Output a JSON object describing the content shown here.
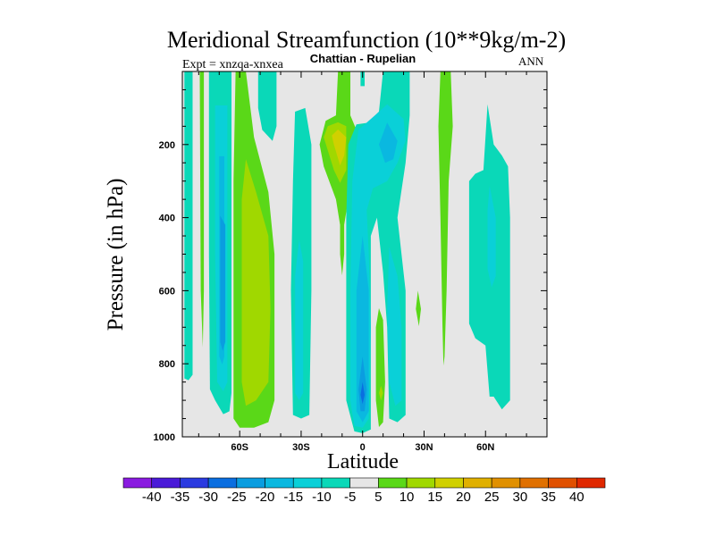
{
  "chart_data": {
    "type": "contour",
    "title": "Meridional Streamfunction (10**9kg/m-2)",
    "subtitle": "Chattian - Rupelian",
    "left_annotation": "Expt = xnzqa-xnxea",
    "right_annotation": "ANN",
    "xlabel": "Latitude",
    "ylabel": "Pressure (in hPa)",
    "xlim": [
      -88,
      90
    ],
    "ylim": [
      1000,
      0
    ],
    "x_ticks": [
      {
        "value": -60,
        "label": "60S"
      },
      {
        "value": -30,
        "label": "30S"
      },
      {
        "value": 0,
        "label": "0"
      },
      {
        "value": 30,
        "label": "30N"
      },
      {
        "value": 60,
        "label": "60N"
      }
    ],
    "y_ticks": [
      {
        "value": 200,
        "label": "200"
      },
      {
        "value": 400,
        "label": "400"
      },
      {
        "value": 600,
        "label": "600"
      },
      {
        "value": 800,
        "label": "800"
      },
      {
        "value": 1000,
        "label": "1000"
      }
    ],
    "background_color": "#e6e6e6",
    "colorbar": {
      "labels": [
        "-40",
        "-35",
        "-30",
        "-25",
        "-20",
        "-15",
        "-10",
        "-5",
        "5",
        "10",
        "15",
        "20",
        "25",
        "30",
        "35",
        "40"
      ],
      "colors": [
        "#8a1be0",
        "#4a1ad8",
        "#2a3ae0",
        "#0a6ee0",
        "#0a9de0",
        "#0ab8e0",
        "#0ad0d8",
        "#0ad8b8",
        "#e6e6e6",
        "#5ad818",
        "#a0d800",
        "#d0d000",
        "#e0b000",
        "#e09000",
        "#e07000",
        "#e05000",
        "#e02800"
      ]
    },
    "regions": [
      {
        "level": -7.5,
        "color": "#0ad8b8",
        "points": [
          [
            -87,
            0
          ],
          [
            -83,
            0
          ],
          [
            -83,
            830
          ],
          [
            -85,
            845
          ],
          [
            -87,
            840
          ]
        ]
      },
      {
        "level": 7.5,
        "color": "#5ad818",
        "points": [
          [
            -79.5,
            0
          ],
          [
            -77.5,
            0
          ],
          [
            -77.5,
            600
          ],
          [
            -78,
            755
          ],
          [
            -79,
            600
          ]
        ]
      },
      {
        "level": -7.5,
        "color": "#0ad8b8",
        "points": [
          [
            -75,
            0
          ],
          [
            -64,
            0
          ],
          [
            -64,
            880
          ],
          [
            -65,
            930
          ],
          [
            -68,
            938
          ],
          [
            -72,
            900
          ],
          [
            -74.5,
            870
          ],
          [
            -75,
            500
          ]
        ]
      },
      {
        "level": -12.5,
        "color": "#0ad0d8",
        "points": [
          [
            -72,
            93
          ],
          [
            -66,
            93
          ],
          [
            -66,
            850
          ],
          [
            -68,
            875
          ],
          [
            -71,
            850
          ],
          [
            -72,
            500
          ]
        ]
      },
      {
        "level": -17.5,
        "color": "#0ab8e0",
        "points": [
          [
            -70,
            232
          ],
          [
            -67.5,
            232
          ],
          [
            -67.5,
            780
          ],
          [
            -68.5,
            802
          ],
          [
            -70,
            780
          ]
        ]
      },
      {
        "level": -22.5,
        "color": "#0a9de0",
        "points": [
          [
            -69.5,
            395
          ],
          [
            -67,
            420
          ],
          [
            -67,
            740
          ],
          [
            -68.3,
            765
          ],
          [
            -69.5,
            740
          ]
        ]
      },
      {
        "level": 7.5,
        "color": "#5ad818",
        "points": [
          [
            -62,
            0
          ],
          [
            -57,
            0
          ],
          [
            -53,
            180
          ],
          [
            -46,
            330
          ],
          [
            -43,
            500
          ],
          [
            -43,
            900
          ],
          [
            -46,
            960
          ],
          [
            -53,
            975
          ],
          [
            -60,
            975
          ],
          [
            -63,
            950
          ],
          [
            -63,
            300
          ]
        ]
      },
      {
        "level": 12.5,
        "color": "#a0d800",
        "points": [
          [
            -57,
            240
          ],
          [
            -52,
            330
          ],
          [
            -46,
            450
          ],
          [
            -45,
            650
          ],
          [
            -46,
            850
          ],
          [
            -52,
            900
          ],
          [
            -57,
            915
          ],
          [
            -59,
            850
          ],
          [
            -59,
            350
          ]
        ]
      },
      {
        "level": -7.5,
        "color": "#0ad8b8",
        "points": [
          [
            -51,
            0
          ],
          [
            -42,
            0
          ],
          [
            -42,
            150
          ],
          [
            -44,
            190
          ],
          [
            -49,
            160
          ],
          [
            -51,
            100
          ]
        ]
      },
      {
        "level": -7.5,
        "color": "#0ad8b8",
        "points": [
          [
            -33,
            110
          ],
          [
            -28,
            100
          ],
          [
            -25,
            200
          ],
          [
            -25,
            600
          ],
          [
            -26,
            940
          ],
          [
            -30,
            950
          ],
          [
            -34,
            940
          ],
          [
            -35,
            600
          ],
          [
            -34,
            300
          ]
        ]
      },
      {
        "level": -12.5,
        "color": "#0ad0d8",
        "points": [
          [
            -31,
            460
          ],
          [
            -29,
            520
          ],
          [
            -29,
            880
          ],
          [
            -31,
            900
          ],
          [
            -33,
            880
          ],
          [
            -33,
            560
          ]
        ]
      },
      {
        "level": 7.5,
        "color": "#5ad818",
        "points": [
          [
            -12,
            0
          ],
          [
            -6,
            0
          ],
          [
            -6,
            120
          ],
          [
            -3,
            160
          ],
          [
            -3,
            300
          ],
          [
            -7,
            350
          ],
          [
            -9,
            420
          ],
          [
            -9,
            500
          ],
          [
            -10,
            558
          ],
          [
            -11,
            500
          ],
          [
            -11,
            420
          ],
          [
            -13,
            350
          ],
          [
            -19,
            260
          ],
          [
            -21,
            200
          ],
          [
            -18,
            135
          ],
          [
            -13,
            120
          ]
        ]
      },
      {
        "level": 12.5,
        "color": "#a0d800",
        "points": [
          [
            -12,
            139
          ],
          [
            -8,
            150
          ],
          [
            -8,
            270
          ],
          [
            -11,
            305
          ],
          [
            -14,
            270
          ],
          [
            -19,
            180
          ],
          [
            -17,
            150
          ]
        ]
      },
      {
        "level": 17.5,
        "color": "#d0d000",
        "points": [
          [
            -12,
            159
          ],
          [
            -8,
            180
          ],
          [
            -9,
            230
          ],
          [
            -11,
            257
          ],
          [
            -14,
            200
          ],
          [
            -15,
            175
          ]
        ]
      },
      {
        "level": -7.5,
        "color": "#0ad8b8",
        "points": [
          [
            -1,
            0
          ],
          [
            1,
            0
          ],
          [
            1,
            40
          ],
          [
            -1,
            40
          ]
        ]
      },
      {
        "level": -7.5,
        "color": "#0ad8b8",
        "points": [
          [
            10,
            0
          ],
          [
            23,
            0
          ],
          [
            23,
            120
          ],
          [
            21,
            250
          ],
          [
            17,
            400
          ],
          [
            21,
            600
          ],
          [
            21,
            940
          ],
          [
            17,
            960
          ],
          [
            13,
            950
          ],
          [
            12,
            700
          ],
          [
            10,
            550
          ],
          [
            7,
            400
          ],
          [
            4,
            450
          ],
          [
            4,
            980
          ],
          [
            0,
            990
          ],
          [
            -4,
            985
          ],
          [
            -8,
            900
          ],
          [
            -8,
            400
          ],
          [
            -7,
            200
          ],
          [
            -3,
            145
          ],
          [
            3,
            140
          ],
          [
            8,
            110
          ]
        ]
      },
      {
        "level": -12.5,
        "color": "#0ad0d8",
        "points": [
          [
            6,
            120
          ],
          [
            12,
            90
          ],
          [
            20,
            130
          ],
          [
            21,
            190
          ],
          [
            17,
            250
          ],
          [
            12,
            300
          ],
          [
            5,
            320
          ],
          [
            2,
            380
          ],
          [
            3,
            500
          ],
          [
            4,
            700
          ],
          [
            3,
            950
          ],
          [
            0,
            975
          ],
          [
            -4,
            970
          ],
          [
            -6,
            900
          ],
          [
            -6,
            600
          ],
          [
            -5,
            300
          ],
          [
            -2,
            160
          ]
        ]
      },
      {
        "level": -12.5,
        "color": "#0ad0d8",
        "points": [
          [
            13,
            480
          ],
          [
            17,
            560
          ],
          [
            19,
            700
          ],
          [
            19,
            900
          ],
          [
            16,
            915
          ],
          [
            13,
            850
          ],
          [
            12,
            650
          ]
        ]
      },
      {
        "level": -17.5,
        "color": "#0ab8e0",
        "points": [
          [
            12,
            140
          ],
          [
            17,
            190
          ],
          [
            15,
            240
          ],
          [
            11,
            250
          ],
          [
            8,
            200
          ]
        ]
      },
      {
        "level": -17.5,
        "color": "#0ab8e0",
        "points": [
          [
            0,
            450
          ],
          [
            3,
            600
          ],
          [
            3,
            930
          ],
          [
            0,
            960
          ],
          [
            -3,
            930
          ],
          [
            -3,
            600
          ]
        ]
      },
      {
        "level": -22.5,
        "color": "#0a9de0",
        "points": [
          [
            0,
            780
          ],
          [
            2,
            870
          ],
          [
            1,
            930
          ],
          [
            -1,
            930
          ],
          [
            -2,
            870
          ]
        ]
      },
      {
        "level": -27.5,
        "color": "#0a6ee0",
        "points": [
          [
            0,
            850
          ],
          [
            1,
            885
          ],
          [
            0,
            910
          ],
          [
            -1,
            885
          ]
        ]
      },
      {
        "level": 7.5,
        "color": "#5ad818",
        "points": [
          [
            38,
            0
          ],
          [
            43,
            0
          ],
          [
            44,
            150
          ],
          [
            42,
            300
          ],
          [
            41,
            600
          ],
          [
            40,
            780
          ],
          [
            39.5,
            805
          ],
          [
            39,
            700
          ],
          [
            38,
            400
          ],
          [
            37,
            150
          ]
        ]
      },
      {
        "level": 7.5,
        "color": "#5ad818",
        "points": [
          [
            27,
            600
          ],
          [
            28.5,
            650
          ],
          [
            27.5,
            697
          ],
          [
            26,
            650
          ]
        ]
      },
      {
        "level": 7.5,
        "color": "#5ad818",
        "points": [
          [
            8,
            648
          ],
          [
            10,
            680
          ],
          [
            11,
            850
          ],
          [
            10,
            960
          ],
          [
            8,
            973
          ],
          [
            6.5,
            900
          ],
          [
            6.5,
            700
          ]
        ]
      },
      {
        "level": 12.5,
        "color": "#a0d800",
        "points": [
          [
            9,
            860
          ],
          [
            10,
            880
          ],
          [
            9,
            900
          ],
          [
            8,
            880
          ]
        ]
      },
      {
        "level": -7.5,
        "color": "#0ad8b8",
        "points": [
          [
            61,
            90
          ],
          [
            64,
            200
          ],
          [
            68,
            230
          ],
          [
            71,
            260
          ],
          [
            72,
            400
          ],
          [
            72,
            900
          ],
          [
            68,
            925
          ],
          [
            64,
            890
          ],
          [
            62,
            890
          ],
          [
            60,
            750
          ],
          [
            55,
            730
          ],
          [
            52,
            690
          ],
          [
            52,
            300
          ],
          [
            55,
            280
          ],
          [
            59,
            270
          ]
        ]
      },
      {
        "level": -12.5,
        "color": "#0ad0d8",
        "points": [
          [
            62,
            313
          ],
          [
            65,
            400
          ],
          [
            65,
            560
          ],
          [
            63,
            591
          ],
          [
            61,
            540
          ],
          [
            61,
            380
          ]
        ]
      }
    ]
  }
}
